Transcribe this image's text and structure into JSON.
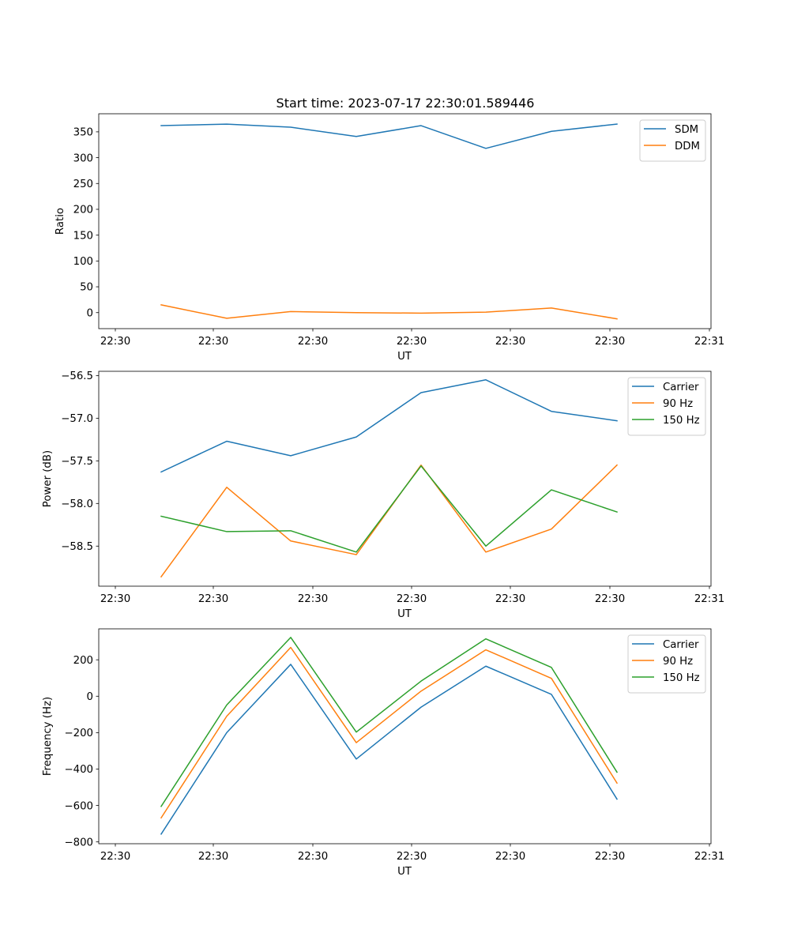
{
  "figure_title": "Start time: 2023-07-17 22:30:01.589446",
  "x_tick_labels": [
    "22:30",
    "22:30",
    "22:30",
    "22:30",
    "22:30",
    "22:30",
    "22:31"
  ],
  "chart_data": [
    {
      "type": "line",
      "title": "Start time: 2023-07-17 22:30:01.589446",
      "xlabel": "UT",
      "ylabel": "Ratio",
      "ylim": [
        -31,
        385
      ],
      "yticks": [
        0,
        50,
        100,
        150,
        200,
        250,
        300,
        350
      ],
      "legend_position": "top-right",
      "grid": false,
      "series": [
        {
          "name": "SDM",
          "color": "#1f77b4",
          "values": [
            362,
            365,
            359,
            341,
            362,
            318,
            351,
            365
          ]
        },
        {
          "name": "DDM",
          "color": "#ff7f0e",
          "values": [
            15,
            -11,
            2,
            0,
            -1,
            1,
            9,
            -12
          ]
        }
      ]
    },
    {
      "type": "line",
      "title": "",
      "xlabel": "UT",
      "ylabel": "Power (dB)",
      "ylim": [
        -58.97,
        -56.45
      ],
      "yticks": [
        -58.5,
        -58.0,
        -57.5,
        -57.0,
        -56.5
      ],
      "ytick_labels": [
        "−58.5",
        "−58.0",
        "−57.5",
        "−57.0",
        "−56.5"
      ],
      "legend_position": "top-right",
      "grid": false,
      "series": [
        {
          "name": "Carrier",
          "color": "#1f77b4",
          "values": [
            -57.63,
            -57.27,
            -57.44,
            -57.22,
            -56.7,
            -56.55,
            -56.92,
            -57.03
          ]
        },
        {
          "name": "90 Hz",
          "color": "#ff7f0e",
          "values": [
            -58.86,
            -57.81,
            -58.44,
            -58.6,
            -57.55,
            -58.57,
            -58.3,
            -57.55
          ]
        },
        {
          "name": "150 Hz",
          "color": "#2ca02c",
          "values": [
            -58.15,
            -58.33,
            -58.32,
            -58.57,
            -57.56,
            -58.5,
            -57.84,
            -58.1
          ]
        }
      ]
    },
    {
      "type": "line",
      "title": "",
      "xlabel": "UT",
      "ylabel": "Frequency (Hz)",
      "ylim": [
        -810,
        370
      ],
      "yticks": [
        -800,
        -600,
        -400,
        -200,
        0,
        200
      ],
      "ytick_labels": [
        "−800",
        "−600",
        "−400",
        "−200",
        "0",
        "200"
      ],
      "legend_position": "top-right",
      "grid": false,
      "series": [
        {
          "name": "Carrier",
          "color": "#1f77b4",
          "values": [
            -757,
            -200,
            175,
            -345,
            -60,
            165,
            10,
            -565
          ]
        },
        {
          "name": "90 Hz",
          "color": "#ff7f0e",
          "values": [
            -668,
            -110,
            268,
            -255,
            28,
            255,
            98,
            -477
          ]
        },
        {
          "name": "150 Hz",
          "color": "#2ca02c",
          "values": [
            -605,
            -48,
            323,
            -197,
            83,
            315,
            158,
            -417
          ]
        }
      ]
    }
  ]
}
